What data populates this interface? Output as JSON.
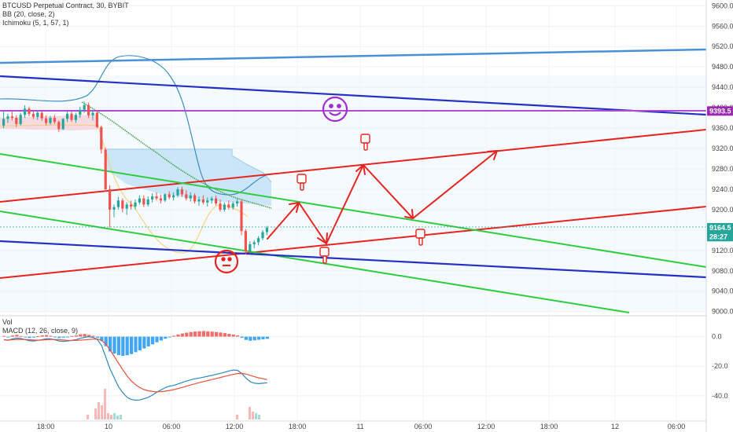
{
  "header": {
    "symbol_line": "BTCUSD Perpetual Contract, 30, BYBIT",
    "bb_line": "BB (20, close, 2)",
    "ichimoku_line": "Ichimoku (5, 1, 57, 1)"
  },
  "lower_pane": {
    "vol_label": "Vol",
    "macd_label": "MACD (12, 26, close, 9)"
  },
  "chart_data": [
    {
      "type": "candlestick",
      "pane": "price",
      "title": "BTCUSD Perpetual Contract, 30, BYBIT",
      "yticks": [
        9000,
        9040,
        9080,
        9120,
        9160,
        9200,
        9240,
        9280,
        9320,
        9360,
        9400,
        9440,
        9480,
        9520,
        9560,
        9600
      ],
      "ytick_labels": [
        "9000.0",
        "9040.0",
        "9080.0",
        "9120.0",
        "9160.0",
        "9200.0",
        "9240.0",
        "9280.0",
        "9320.0",
        "9360.0",
        "9400.0",
        "9440.0",
        "9480.0",
        "9520.0",
        "9560.0",
        "9600.0"
      ],
      "ylim": [
        8998,
        9602
      ],
      "xticks": [
        "18:00",
        "10",
        "06:00",
        "12:00",
        "18:00",
        "11",
        "06:00",
        "12:00",
        "18:00",
        "12",
        "06:00"
      ],
      "price_tags": [
        {
          "value": 9393.5,
          "label": "9393.5",
          "color": "#9c27b0"
        },
        {
          "value": 9164.5,
          "label": "9164.5",
          "color": "#26a69a"
        },
        {
          "value": 9147,
          "label": "28:27",
          "color": "#26a69a"
        }
      ],
      "candles": [
        [
          9365,
          9392,
          9360,
          9378
        ],
        [
          9378,
          9388,
          9370,
          9383
        ],
        [
          9383,
          9392,
          9375,
          9380
        ],
        [
          9380,
          9385,
          9362,
          9368
        ],
        [
          9368,
          9390,
          9365,
          9386
        ],
        [
          9386,
          9405,
          9380,
          9398
        ],
        [
          9398,
          9402,
          9383,
          9388
        ],
        [
          9388,
          9396,
          9378,
          9382
        ],
        [
          9382,
          9394,
          9376,
          9390
        ],
        [
          9390,
          9393,
          9374,
          9379
        ],
        [
          9379,
          9385,
          9365,
          9370
        ],
        [
          9370,
          9384,
          9366,
          9380
        ],
        [
          9380,
          9386,
          9368,
          9372
        ],
        [
          9372,
          9375,
          9352,
          9358
        ],
        [
          9358,
          9380,
          9356,
          9378
        ],
        [
          9378,
          9392,
          9372,
          9388
        ],
        [
          9388,
          9392,
          9372,
          9376
        ],
        [
          9376,
          9390,
          9370,
          9386
        ],
        [
          9386,
          9402,
          9380,
          9396
        ],
        [
          9396,
          9412,
          9390,
          9405
        ],
        [
          9405,
          9410,
          9380,
          9385
        ],
        [
          9385,
          9395,
          9375,
          9390
        ],
        [
          9390,
          9394,
          9360,
          9362
        ],
        [
          9362,
          9365,
          9310,
          9318
        ],
        [
          9318,
          9322,
          9235,
          9240
        ],
        [
          9240,
          9248,
          9165,
          9200
        ],
        [
          9200,
          9210,
          9185,
          9205
        ],
        [
          9205,
          9225,
          9200,
          9218
        ],
        [
          9218,
          9222,
          9195,
          9202
        ],
        [
          9202,
          9215,
          9190,
          9210
        ],
        [
          9210,
          9218,
          9200,
          9206
        ],
        [
          9206,
          9220,
          9200,
          9214
        ],
        [
          9214,
          9228,
          9210,
          9222
        ],
        [
          9222,
          9228,
          9205,
          9210
        ],
        [
          9210,
          9226,
          9206,
          9220
        ],
        [
          9220,
          9232,
          9214,
          9226
        ],
        [
          9226,
          9234,
          9218,
          9222
        ],
        [
          9222,
          9230,
          9212,
          9218
        ],
        [
          9218,
          9232,
          9215,
          9230
        ],
        [
          9230,
          9236,
          9220,
          9224
        ],
        [
          9224,
          9234,
          9218,
          9228
        ],
        [
          9228,
          9244,
          9224,
          9240
        ],
        [
          9240,
          9245,
          9225,
          9230
        ],
        [
          9230,
          9238,
          9218,
          9222
        ],
        [
          9222,
          9234,
          9216,
          9228
        ],
        [
          9228,
          9232,
          9212,
          9216
        ],
        [
          9216,
          9226,
          9208,
          9220
        ],
        [
          9220,
          9228,
          9210,
          9214
        ],
        [
          9214,
          9224,
          9206,
          9218
        ],
        [
          9218,
          9226,
          9212,
          9222
        ],
        [
          9222,
          9228,
          9208,
          9212
        ],
        [
          9212,
          9220,
          9196,
          9200
        ],
        [
          9200,
          9214,
          9196,
          9210
        ],
        [
          9210,
          9218,
          9200,
          9204
        ],
        [
          9204,
          9216,
          9200,
          9212
        ],
        [
          9212,
          9222,
          9206,
          9216
        ],
        [
          9216,
          9220,
          9150,
          9158
        ],
        [
          9158,
          9162,
          9112,
          9118
        ],
        [
          9118,
          9138,
          9114,
          9132
        ],
        [
          9132,
          9140,
          9124,
          9136
        ],
        [
          9136,
          9148,
          9130,
          9144
        ],
        [
          9144,
          9160,
          9140,
          9156
        ],
        [
          9156,
          9168,
          9150,
          9164.5
        ]
      ]
    },
    {
      "type": "histogram",
      "pane": "macd",
      "title": "MACD (12, 26, close, 9)",
      "yticks": [
        0,
        -20,
        -40
      ],
      "ytick_labels": [
        "0.0",
        "-20.0",
        "-40.0"
      ],
      "ylim": [
        -56,
        12
      ],
      "histogram": [
        0.5,
        -0.3,
        0.8,
        1.2,
        0.4,
        -0.5,
        -0.9,
        -0.6,
        0.3,
        0.9,
        1.1,
        0.6,
        -0.4,
        -1.0,
        -0.7,
        -0.2,
        0.4,
        0.8,
        1.6,
        1.8,
        1.2,
        0.6,
        -0.8,
        -3.0,
        -6.5,
        -10.0,
        -11.5,
        -12.5,
        -13.0,
        -12.6,
        -11.8,
        -10.5,
        -9.3,
        -8.0,
        -6.6,
        -5.2,
        -3.8,
        -2.6,
        -1.4,
        -0.4,
        0.6,
        1.4,
        2.1,
        2.7,
        3.1,
        3.4,
        3.6,
        3.8,
        3.6,
        3.4,
        3.1,
        2.8,
        2.4,
        1.9,
        1.4,
        0.8,
        -0.8,
        -2.2,
        -2.8,
        -2.5,
        -2.1,
        -1.8,
        -1.5
      ],
      "macd_line": [
        -2,
        -2.5,
        -1.5,
        -1,
        -1.2,
        -2,
        -2.8,
        -3,
        -2.5,
        -2,
        -1.5,
        -1.5,
        -2.2,
        -3,
        -3.2,
        -3,
        -2.5,
        -2,
        -1.2,
        -0.5,
        0,
        -0.5,
        -2,
        -6,
        -14,
        -22,
        -28,
        -34,
        -38,
        -41,
        -42.5,
        -43,
        -42.8,
        -42,
        -41,
        -39.5,
        -37.5,
        -36,
        -34.5,
        -33.5,
        -33,
        -32,
        -31,
        -30,
        -29.2,
        -28.5,
        -28,
        -27.4,
        -26.8,
        -26.2,
        -25.5,
        -24.8,
        -24,
        -23.2,
        -22.6,
        -22.8,
        -25,
        -28,
        -30.5,
        -31.5,
        -31.8,
        -31.5,
        -31.2
      ],
      "signal_line": [
        -2.2,
        -2.3,
        -2.1,
        -1.9,
        -1.8,
        -1.9,
        -2.1,
        -2.3,
        -2.4,
        -2.3,
        -2.1,
        -1.9,
        -1.9,
        -2.1,
        -2.3,
        -2.5,
        -2.6,
        -2.5,
        -2.4,
        -2.2,
        -1.9,
        -1.7,
        -1.6,
        -2.5,
        -5,
        -9,
        -13.5,
        -18,
        -22.5,
        -26.5,
        -30,
        -32.5,
        -34.5,
        -35.8,
        -36.6,
        -37.1,
        -37.3,
        -37.2,
        -36.9,
        -36.4,
        -35.8,
        -35.1,
        -34.3,
        -33.5,
        -32.7,
        -31.9,
        -31.1,
        -30.4,
        -29.7,
        -29,
        -28.3,
        -27.6,
        -26.9,
        -26.2,
        -25.5,
        -25,
        -24.9,
        -25.3,
        -26.2,
        -27.1,
        -27.9,
        -28.5,
        -29
      ]
    }
  ]
}
